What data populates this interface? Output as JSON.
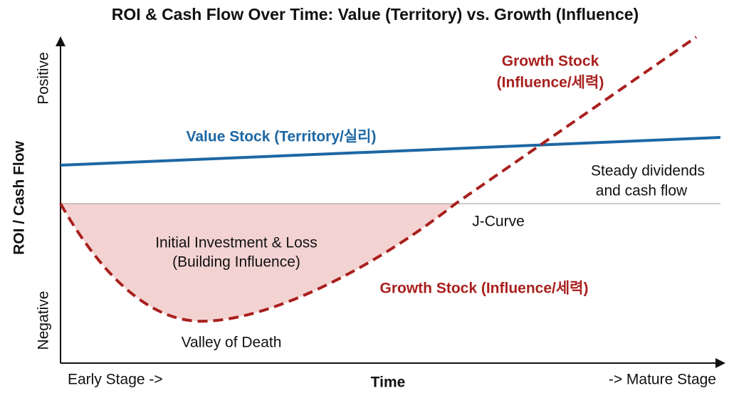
{
  "title": "ROI & Cash Flow Over Time: Value (Territory) vs. Growth (Influence)",
  "axes": {
    "y_label": "ROI / Cash Flow",
    "y_top": "Positive",
    "y_bottom": "Negative",
    "x_label": "Time",
    "x_start": "Early Stage ->",
    "x_end": "-> Mature Stage"
  },
  "labels": {
    "growth_top": [
      "Growth Stock",
      "(Influence/세력)"
    ],
    "value": "Value Stock (Territory/실리)",
    "dividends": [
      "Steady dividends",
      "and cash flow"
    ],
    "j_curve": "J-Curve",
    "investment": [
      "Initial Investment & Loss",
      "(Building Influence)"
    ],
    "growth_bottom": "Growth Stock (Influence/세력)",
    "valley": "Valley of Death"
  }
}
